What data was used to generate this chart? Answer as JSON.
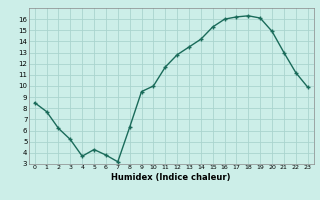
{
  "x": [
    0,
    1,
    2,
    3,
    4,
    5,
    6,
    7,
    8,
    9,
    10,
    11,
    12,
    13,
    14,
    15,
    16,
    17,
    18,
    19,
    20,
    21,
    22,
    23
  ],
  "y": [
    8.5,
    7.7,
    6.2,
    5.2,
    3.7,
    4.3,
    3.8,
    3.2,
    6.3,
    9.5,
    10.0,
    11.7,
    12.8,
    13.5,
    14.2,
    15.3,
    16.0,
    16.2,
    16.3,
    16.1,
    14.9,
    13.0,
    11.2,
    9.9
  ],
  "xlabel": "Humidex (Indice chaleur)",
  "xlim": [
    -0.5,
    23.5
  ],
  "ylim": [
    3,
    17
  ],
  "yticks": [
    3,
    4,
    5,
    6,
    7,
    8,
    9,
    10,
    11,
    12,
    13,
    14,
    15,
    16
  ],
  "xticks": [
    0,
    1,
    2,
    3,
    4,
    5,
    6,
    7,
    8,
    9,
    10,
    11,
    12,
    13,
    14,
    15,
    16,
    17,
    18,
    19,
    20,
    21,
    22,
    23
  ],
  "line_color": "#1a6b5a",
  "marker": "+",
  "bg_color": "#cceee8",
  "grid_color": "#aad4ce"
}
